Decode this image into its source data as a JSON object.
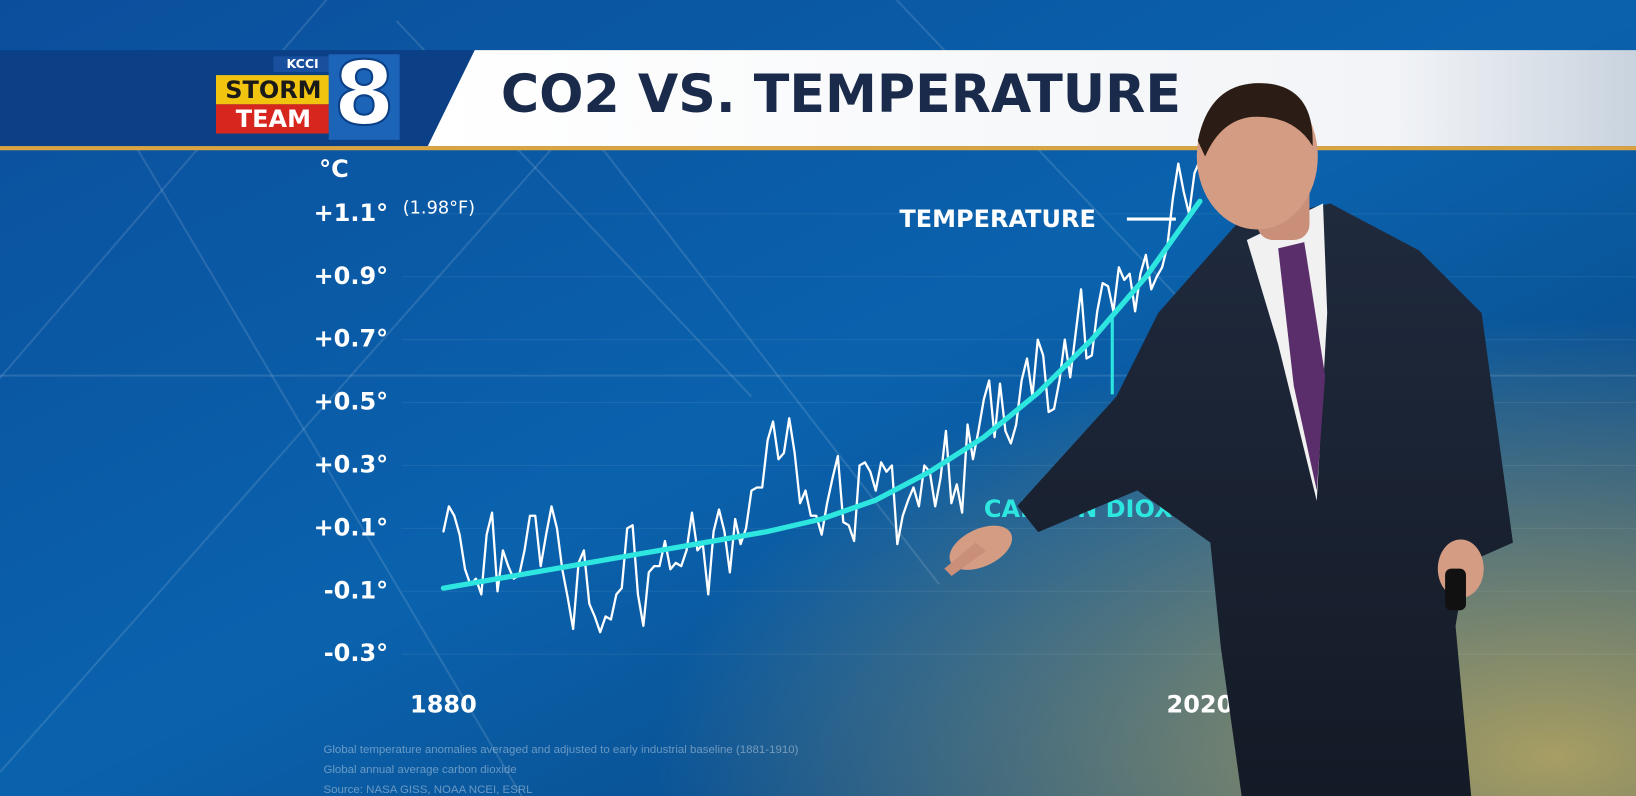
{
  "logo": {
    "station": "KCCI",
    "line1": "STORM",
    "line2": "TEAM",
    "number": "8"
  },
  "chart_data": {
    "type": "line",
    "title": "CO2 VS. TEMPERATURE",
    "y_label": "°C",
    "annotation": "(1.98°F)",
    "xlim": [
      1880,
      2020
    ],
    "xticks": [
      1880,
      2020
    ],
    "ylim": [
      -0.4,
      1.3
    ],
    "yticks": [
      {
        "value": -0.3,
        "label": "-0.3°"
      },
      {
        "value": -0.1,
        "label": "-0.1°"
      },
      {
        "value": 0.1,
        "label": "+0.1°"
      },
      {
        "value": 0.3,
        "label": "+0.3°"
      },
      {
        "value": 0.5,
        "label": "+0.5°"
      },
      {
        "value": 0.7,
        "label": "+0.7°"
      },
      {
        "value": 0.9,
        "label": "+0.9°"
      },
      {
        "value": 1.1,
        "label": "+1.1°"
      }
    ],
    "grid": true,
    "series": [
      {
        "name": "TEMPERATURE",
        "color": "#ffffff",
        "x": [
          1880,
          1881,
          1882,
          1883,
          1884,
          1885,
          1886,
          1887,
          1888,
          1889,
          1890,
          1891,
          1892,
          1893,
          1894,
          1895,
          1896,
          1897,
          1898,
          1899,
          1900,
          1901,
          1902,
          1903,
          1904,
          1905,
          1906,
          1907,
          1908,
          1909,
          1910,
          1911,
          1912,
          1913,
          1914,
          1915,
          1916,
          1917,
          1918,
          1919,
          1920,
          1921,
          1922,
          1923,
          1924,
          1925,
          1926,
          1927,
          1928,
          1929,
          1930,
          1931,
          1932,
          1933,
          1934,
          1935,
          1936,
          1937,
          1938,
          1939,
          1940,
          1941,
          1942,
          1943,
          1944,
          1945,
          1946,
          1947,
          1948,
          1949,
          1950,
          1951,
          1952,
          1953,
          1954,
          1955,
          1956,
          1957,
          1958,
          1959,
          1960,
          1961,
          1962,
          1963,
          1964,
          1965,
          1966,
          1967,
          1968,
          1969,
          1970,
          1971,
          1972,
          1973,
          1974,
          1975,
          1976,
          1977,
          1978,
          1979,
          1980,
          1981,
          1982,
          1983,
          1984,
          1985,
          1986,
          1987,
          1988,
          1989,
          1990,
          1991,
          1992,
          1993,
          1994,
          1995,
          1996,
          1997,
          1998,
          1999,
          2000,
          2001,
          2002,
          2003,
          2004,
          2005,
          2006,
          2007,
          2008,
          2009,
          2010,
          2011,
          2012,
          2013,
          2014,
          2015,
          2016,
          2017,
          2018,
          2019,
          2020
        ],
        "values": [
          0.09,
          0.17,
          0.14,
          0.08,
          -0.03,
          -0.08,
          -0.06,
          -0.11,
          0.08,
          0.15,
          -0.1,
          0.03,
          -0.02,
          -0.06,
          -0.05,
          0.03,
          0.14,
          0.14,
          -0.02,
          0.08,
          0.17,
          0.1,
          -0.03,
          -0.12,
          -0.22,
          -0.01,
          0.03,
          -0.14,
          -0.18,
          -0.23,
          -0.18,
          -0.19,
          -0.11,
          -0.09,
          0.1,
          0.11,
          -0.11,
          -0.21,
          -0.04,
          -0.02,
          -0.02,
          0.06,
          -0.03,
          -0.01,
          -0.02,
          0.03,
          0.15,
          0.03,
          0.05,
          -0.11,
          0.09,
          0.16,
          0.09,
          -0.04,
          0.13,
          0.05,
          0.1,
          0.22,
          0.23,
          0.23,
          0.38,
          0.44,
          0.32,
          0.34,
          0.45,
          0.34,
          0.18,
          0.22,
          0.14,
          0.14,
          0.08,
          0.18,
          0.26,
          0.33,
          0.12,
          0.11,
          0.06,
          0.3,
          0.31,
          0.28,
          0.22,
          0.31,
          0.28,
          0.3,
          0.05,
          0.14,
          0.19,
          0.23,
          0.17,
          0.3,
          0.28,
          0.17,
          0.26,
          0.41,
          0.18,
          0.24,
          0.15,
          0.43,
          0.32,
          0.41,
          0.51,
          0.57,
          0.39,
          0.56,
          0.41,
          0.37,
          0.43,
          0.57,
          0.64,
          0.52,
          0.7,
          0.65,
          0.47,
          0.48,
          0.57,
          0.7,
          0.58,
          0.72,
          0.86,
          0.64,
          0.65,
          0.79,
          0.88,
          0.87,
          0.79,
          0.93,
          0.89,
          0.91,
          0.79,
          0.91,
          0.97,
          0.86,
          0.9,
          0.93,
          1.0,
          1.15,
          1.26,
          1.17,
          1.1,
          1.23,
          1.27
        ]
      },
      {
        "name": "CARBON DIOXIDE",
        "color": "#2ee6e0",
        "x": [
          1880,
          1890,
          1900,
          1910,
          1920,
          1930,
          1940,
          1950,
          1960,
          1970,
          1980,
          1990,
          2000,
          2010,
          2020
        ],
        "values": [
          -0.09,
          -0.06,
          -0.03,
          0.0,
          0.03,
          0.06,
          0.09,
          0.13,
          0.19,
          0.28,
          0.39,
          0.53,
          0.7,
          0.9,
          1.14
        ]
      }
    ],
    "notes": [
      "Global temperature anomalies averaged and adjusted to early industrial baseline (1881-1910)",
      "Global annual average carbon dioxide",
      "Source: NASA GISS, NOAA NCEI, ESRL"
    ]
  }
}
